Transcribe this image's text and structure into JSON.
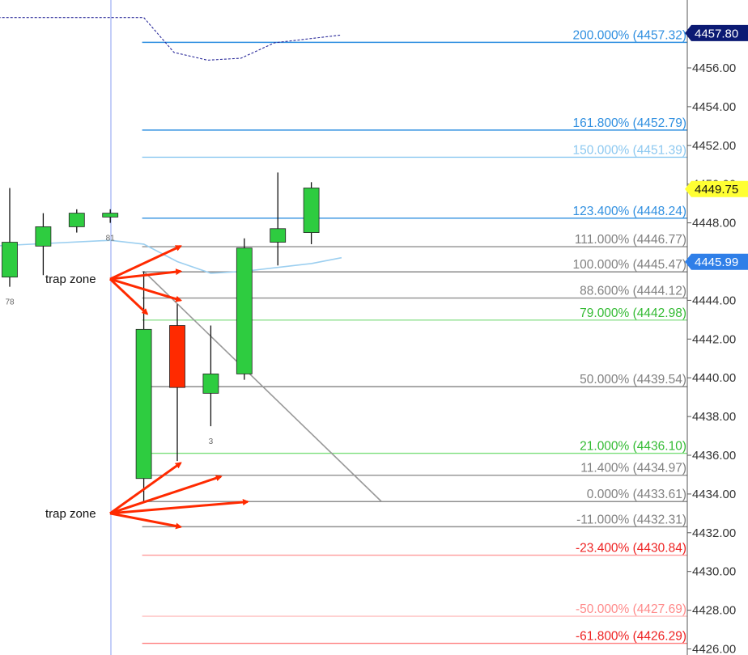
{
  "chart_data": {
    "type": "candlestick",
    "y_axis": {
      "range": [
        4426.0,
        4458.6
      ],
      "tick_labels": [
        "4456.00",
        "4454.00",
        "4452.00",
        "4450.00",
        "4448.00",
        "4446.00",
        "4444.00",
        "4442.00",
        "4440.00",
        "4438.00",
        "4436.00",
        "4434.00",
        "4432.00",
        "4430.00",
        "4428.00",
        "4426.00"
      ],
      "ticks": [
        4456,
        4454,
        4452,
        4450,
        4448,
        4446,
        4444,
        4442,
        4440,
        4438,
        4436,
        4434,
        4432,
        4430,
        4428,
        4426
      ]
    },
    "price_tags": [
      {
        "text": "4457.80",
        "value": 4457.8,
        "bg": "#0b1a73",
        "fg": "#ffffff"
      },
      {
        "text": "4449.75",
        "value": 4449.75,
        "bg": "#ffff33",
        "fg": "#111111"
      },
      {
        "text": "4445.99",
        "value": 4445.99,
        "bg": "#2f7fe8",
        "fg": "#ffffff"
      }
    ],
    "candles": [
      {
        "open": 4445.2,
        "high": 4449.8,
        "low": 4444.7,
        "close": 4447.0,
        "color": "#2ecc40"
      },
      {
        "open": 4447.8,
        "high": 4448.5,
        "low": 4445.3,
        "close": 4446.8,
        "color": "#2ecc40"
      },
      {
        "open": 4448.5,
        "high": 4448.7,
        "low": 4447.5,
        "close": 4447.8,
        "color": "#2ecc40"
      },
      {
        "open": 4448.5,
        "high": 4448.7,
        "low": 4448.0,
        "close": 4448.3,
        "color": "#2ecc40"
      },
      {
        "open": 4434.8,
        "high": 4445.5,
        "low": 4433.6,
        "close": 4442.5,
        "color": "#2ecc40"
      },
      {
        "open": 4442.7,
        "high": 4443.8,
        "low": 4435.7,
        "close": 4439.5,
        "color": "#ff2a00"
      },
      {
        "open": 4439.2,
        "high": 4442.7,
        "low": 4437.5,
        "close": 4440.2,
        "color": "#2ecc40"
      },
      {
        "open": 4440.2,
        "high": 4447.2,
        "low": 4439.9,
        "close": 4446.7,
        "color": "#2ecc40"
      },
      {
        "open": 4447.0,
        "high": 4450.6,
        "low": 4445.8,
        "close": 4447.7,
        "color": "#2ecc40"
      },
      {
        "open": 4447.5,
        "high": 4450.1,
        "low": 4446.9,
        "close": 4449.8,
        "color": "#2ecc40"
      }
    ],
    "bar_numbers": [
      {
        "text": "78",
        "candle": 0
      },
      {
        "text": "81",
        "candle": 3
      },
      {
        "text": "3",
        "candle": 6
      }
    ],
    "fib_levels": [
      {
        "label": "200.000% (4457.32)",
        "value": 4457.32,
        "color": "#2f8fe0",
        "label_color": "#2f8fe0"
      },
      {
        "label": "161.800% (4452.79)",
        "value": 4452.79,
        "color": "#2f8fe0",
        "label_color": "#2f8fe0"
      },
      {
        "label": "150.000% (4451.39)",
        "value": 4451.39,
        "color": "#8cc8f0",
        "label_color": "#8cc8f0"
      },
      {
        "label": "123.400% (4448.24)",
        "value": 4448.24,
        "color": "#2f8fe0",
        "label_color": "#2f8fe0"
      },
      {
        "label": "111.000% (4446.77)",
        "value": 4446.77,
        "color": "#909090",
        "label_color": "#808080"
      },
      {
        "label": "100.000% (4445.47)",
        "value": 4445.47,
        "color": "#808080",
        "label_color": "#808080"
      },
      {
        "label": "88.600% (4444.12)",
        "value": 4444.12,
        "color": "#909090",
        "label_color": "#808080"
      },
      {
        "label": "79.000% (4442.98)",
        "value": 4442.98,
        "color": "#8fe08f",
        "label_color": "#33bb33"
      },
      {
        "label": "50.000% (4439.54)",
        "value": 4439.54,
        "color": "#808080",
        "label_color": "#808080"
      },
      {
        "label": "21.000% (4436.10)",
        "value": 4436.1,
        "color": "#7ee07e",
        "label_color": "#33bb33"
      },
      {
        "label": "11.400% (4434.97)",
        "value": 4434.97,
        "color": "#909090",
        "label_color": "#808080"
      },
      {
        "label": "0.000% (4433.61)",
        "value": 4433.61,
        "color": "#909090",
        "label_color": "#808080"
      },
      {
        "label": "-11.000% (4432.31)",
        "value": 4432.31,
        "color": "#909090",
        "label_color": "#808080"
      },
      {
        "label": "-23.400% (4430.84)",
        "value": 4430.84,
        "color": "#ff9a9a",
        "label_color": "#ee2222"
      },
      {
        "label": "-50.000% (4427.69)",
        "value": 4427.69,
        "color": "#ffc0c0",
        "label_color": "#ff8a8a"
      },
      {
        "label": "-61.800% (4426.29)",
        "value": 4426.29,
        "color": "#ff8080",
        "label_color": "#ee2222"
      }
    ],
    "dashed_line": [
      {
        "x": -3,
        "y": 4458.4
      },
      {
        "x": -0.3,
        "y": 4458.6
      },
      {
        "x": 4,
        "y": 4458.6
      },
      {
        "x": 4.9,
        "y": 4456.8
      },
      {
        "x": 5.9,
        "y": 4456.4
      },
      {
        "x": 6.9,
        "y": 4456.5
      },
      {
        "x": 7.9,
        "y": 4457.3
      },
      {
        "x": 8.9,
        "y": 4457.5
      },
      {
        "x": 9.9,
        "y": 4457.7
      }
    ],
    "light_line": [
      {
        "x": -0.5,
        "y": 4446.8
      },
      {
        "x": 3,
        "y": 4447.1
      },
      {
        "x": 4,
        "y": 4446.9
      },
      {
        "x": 5,
        "y": 4446.0
      },
      {
        "x": 6,
        "y": 4445.4
      },
      {
        "x": 7,
        "y": 4445.5
      },
      {
        "x": 8,
        "y": 4445.7
      },
      {
        "x": 9,
        "y": 4445.9
      },
      {
        "x": 9.9,
        "y": 4446.2
      }
    ],
    "diagonal_line": [
      {
        "x": 4,
        "y": 4445.5
      },
      {
        "x": 11.1,
        "y": 4433.6
      }
    ],
    "annotations": [
      {
        "text": "trap zone",
        "y": 4445.1,
        "arrow_targets": [
          {
            "x": 5.1,
            "y": 4446.8
          },
          {
            "x": 5.1,
            "y": 4445.5
          },
          {
            "x": 5.1,
            "y": 4444.0
          },
          {
            "x": 4.1,
            "y": 4443.3
          }
        ]
      },
      {
        "text": "trap zone",
        "y": 4433.0,
        "arrow_targets": [
          {
            "x": 5.1,
            "y": 4435.6
          },
          {
            "x": 6.3,
            "y": 4434.9
          },
          {
            "x": 7.1,
            "y": 4433.6
          },
          {
            "x": 5.1,
            "y": 4432.3
          }
        ]
      }
    ]
  }
}
